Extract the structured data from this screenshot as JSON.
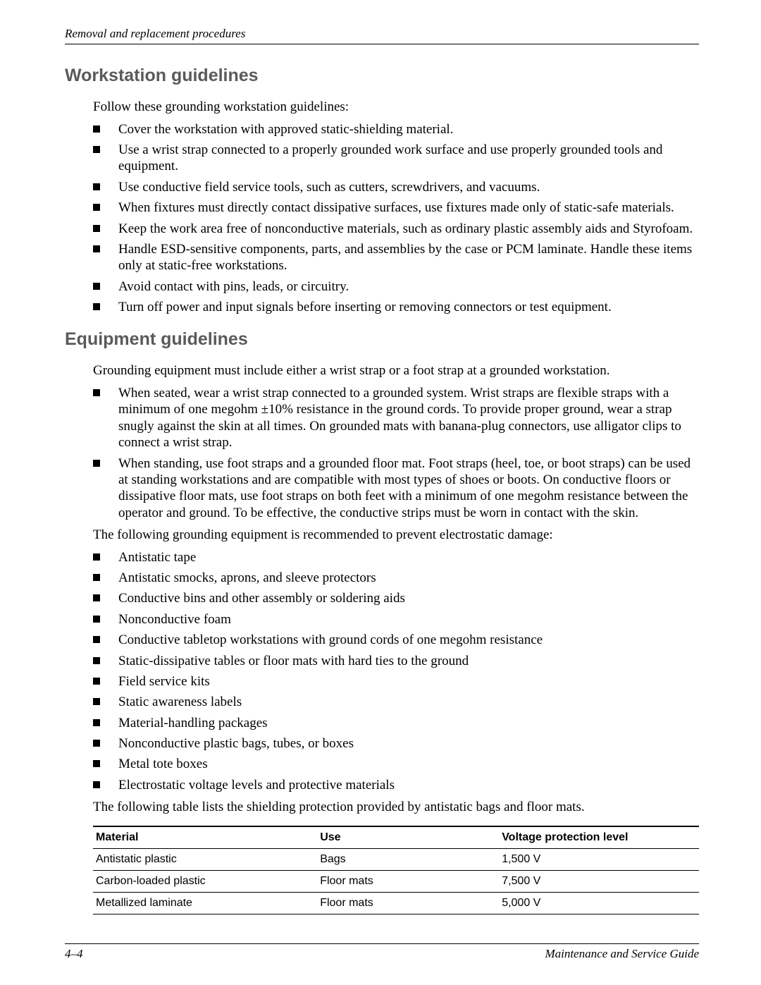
{
  "header": {
    "running": "Removal and replacement procedures"
  },
  "section1": {
    "heading": "Workstation guidelines",
    "intro": "Follow these grounding workstation guidelines:",
    "bullets": [
      "Cover the workstation with approved static-shielding material.",
      "Use a wrist strap connected to a properly grounded work surface and use properly grounded tools and equipment.",
      "Use conductive field service tools, such as cutters, screwdrivers, and vacuums.",
      "When fixtures must directly contact dissipative surfaces, use fixtures made only of static-safe materials.",
      "Keep the work area free of nonconductive materials, such as ordinary plastic assembly aids and Styrofoam.",
      "Handle ESD-sensitive components, parts, and assemblies by the case or PCM laminate. Handle these items only at static-free workstations.",
      "Avoid contact with pins, leads, or circuitry.",
      "Turn off power and input signals before inserting or removing connectors or test equipment."
    ]
  },
  "section2": {
    "heading": "Equipment guidelines",
    "intro": "Grounding equipment must include either a wrist strap or a foot strap at a grounded workstation.",
    "bullets1": [
      "When seated, wear a wrist strap connected to a grounded system. Wrist straps are flexible straps with a minimum of one megohm ±10% resistance in the ground cords. To provide proper ground, wear a strap snugly against the skin at all times. On grounded mats with banana-plug connectors, use alligator clips to connect a wrist strap.",
      "When standing, use foot straps and a grounded floor mat. Foot straps (heel, toe, or boot straps) can be used at standing workstations and are compatible with most types of shoes or boots. On conductive floors or dissipative floor mats, use foot straps on both feet with a minimum of one megohm resistance between the operator and ground. To be effective, the conductive strips must be worn in contact with the skin."
    ],
    "para2": "The following grounding equipment is recommended to prevent electrostatic damage:",
    "bullets2": [
      "Antistatic tape",
      "Antistatic smocks, aprons, and sleeve protectors",
      "Conductive bins and other assembly or soldering aids",
      "Nonconductive foam",
      "Conductive tabletop workstations with ground cords of one megohm resistance",
      "Static-dissipative tables or floor mats with hard ties to the ground",
      "Field service kits",
      "Static awareness labels",
      "Material-handling packages",
      "Nonconductive plastic bags, tubes, or boxes",
      "Metal tote boxes",
      "Electrostatic voltage levels and protective materials"
    ],
    "para3": "The following table lists the shielding protection provided by antistatic bags and floor mats."
  },
  "table": {
    "columns": [
      "Material",
      "Use",
      "Voltage protection level"
    ],
    "rows": [
      [
        "Antistatic plastic",
        "Bags",
        "1,500 V"
      ],
      [
        "Carbon-loaded plastic",
        "Floor mats",
        "7,500 V"
      ],
      [
        "Metallized laminate",
        "Floor mats",
        "5,000 V"
      ]
    ]
  },
  "footer": {
    "page": "4–4",
    "guide": "Maintenance and Service Guide"
  },
  "style": {
    "heading_color": "#5a5a5a",
    "body_font": "Times New Roman",
    "heading_font": "Arial",
    "bg": "#ffffff",
    "text": "#000000"
  }
}
